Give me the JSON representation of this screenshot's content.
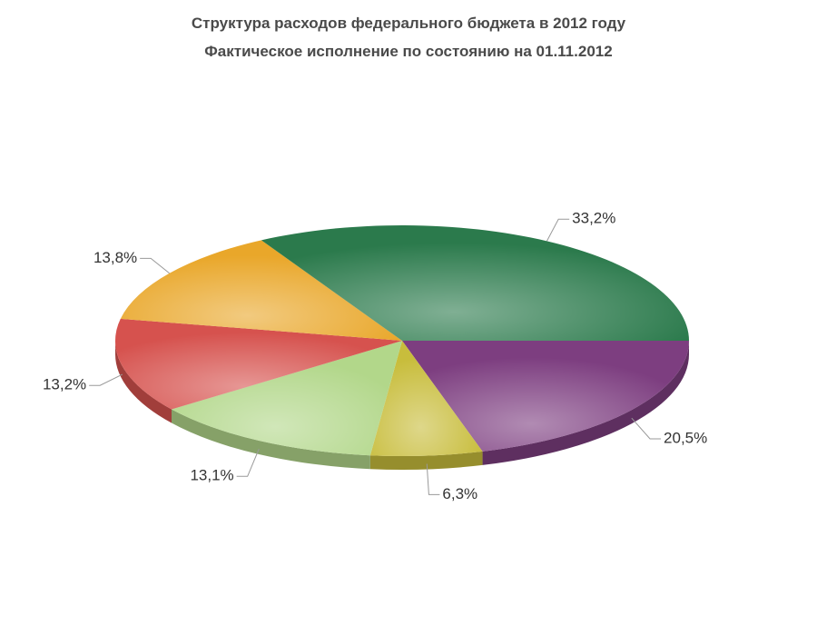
{
  "chart_data": {
    "type": "pie3d",
    "title": "Структура расходов федерального бюджета в 2012 году",
    "subtitle": "Фактическое исполнение по состоянию на 01.11.2012",
    "values": [
      20.5,
      6.3,
      13.1,
      13.2,
      13.8,
      33.2
    ],
    "value_labels": [
      "20,5%",
      "6,3%",
      "13,1%",
      "13,2%",
      "13,8%",
      "33,2%"
    ],
    "colors": [
      "#7d3e80",
      "#c8bd3c",
      "#b2d78a",
      "#d6524e",
      "#e9a72a",
      "#2b7a4c"
    ]
  }
}
